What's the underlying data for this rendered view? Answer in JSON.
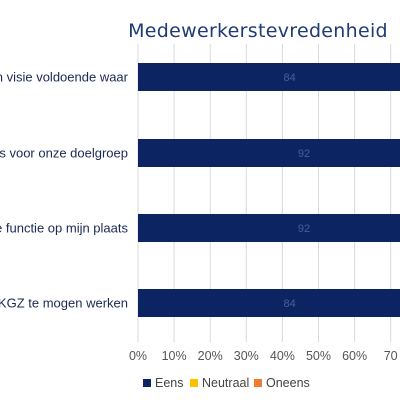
{
  "chart_data": {
    "type": "bar",
    "orientation": "horizontal",
    "stacked": true,
    "title": "Medewerkerstevredenheid",
    "categories": [
      "en visie voldoende waar",
      "ets voor onze doelgroep",
      "e functie op mijn plaats",
      "SKGZ te mogen werken"
    ],
    "series": [
      {
        "name": "Eens",
        "color": "#0C2461",
        "values": [
          84,
          92,
          92,
          84
        ]
      },
      {
        "name": "Neutraal",
        "color": "#FFC000",
        "values": [
          0,
          0,
          0,
          0
        ]
      },
      {
        "name": "Oneens",
        "color": "#ED7D31",
        "values": [
          0,
          0,
          0,
          0
        ]
      }
    ],
    "data_labels": [
      "84",
      "92",
      "92",
      "84"
    ],
    "xaxis": {
      "ticks": [
        "0%",
        "10%",
        "20%",
        "30%",
        "40%",
        "50%",
        "60%",
        "70"
      ],
      "xlim": [
        0,
        100
      ]
    },
    "grid": true,
    "legend_position": "bottom"
  }
}
